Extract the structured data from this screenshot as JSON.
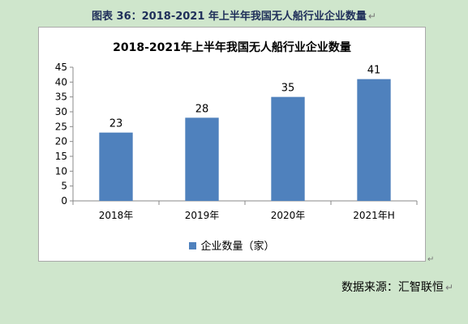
{
  "document": {
    "caption": "图表  36：2018-2021 年上半年我国无人船行业企业数量",
    "paragraph_mark": "↵",
    "source": "数据来源：汇智联恒"
  },
  "colors": {
    "bar": "#4f81bd",
    "page_bg": "#cfe6cc"
  },
  "chart_data": {
    "type": "bar",
    "title": "2018-2021年上半年我国无人船行业企业数量",
    "categories": [
      "2018年",
      "2019年",
      "2020年",
      "2021年H"
    ],
    "series": [
      {
        "name": "企业数量（家）",
        "values": [
          23,
          28,
          35,
          41
        ],
        "color": "#4f81bd"
      }
    ],
    "ylim": [
      0,
      45
    ],
    "yticks": [
      0,
      5,
      10,
      15,
      20,
      25,
      30,
      35,
      40,
      45
    ],
    "xlabel": "",
    "ylabel": "",
    "grid": false,
    "data_labels": true,
    "legend_position": "bottom"
  }
}
